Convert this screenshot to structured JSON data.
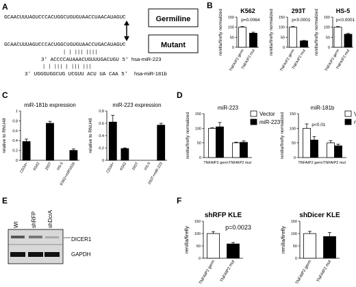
{
  "panels": {
    "A": {
      "label": "A",
      "germline_seq": "GCAACUUUAGUCCCACUGGCUGUGUAACCUAACAUAGUC",
      "mutant_seq": "GCAACUUUAGUCCCACUGGCUGUGUAACCUGACAUAGUC",
      "germline_box": "Germiline",
      "mutant_box": "Mutant",
      "mir223_seq": "3' ACCCCAUAAACUGUUUGACUGU 5'",
      "mir223_name": "hsa-miR-223",
      "mir181b_seq": "3' UGGGUGGCUG UCGUU     ACU   UA  CAA 5'",
      "mir181b_name": "hsa-miR-181b",
      "pairing_223": "|   |  |||  ||||",
      "pairing_181b": "|  |    |||  |  |||    |||"
    },
    "B": {
      "label": "B"
    },
    "C": {
      "label": "C"
    },
    "D": {
      "label": "D"
    },
    "E": {
      "label": "E",
      "lanes": [
        "Wt",
        "shRFP",
        "shDcrA"
      ],
      "bands": [
        "DICER1",
        "GAPDH"
      ]
    },
    "F": {
      "label": "F"
    }
  },
  "chart_data": [
    {
      "id": "B1",
      "type": "bar",
      "title": "K562",
      "ylabel": "renilla/firefly normalized",
      "categories": [
        "TNFAIP2 germ",
        "TNFAIP2 mut"
      ],
      "values": [
        100,
        70
      ],
      "errors": [
        3,
        5
      ],
      "fills": [
        "white",
        "black"
      ],
      "ylim": [
        0,
        150
      ],
      "yticks": [
        0,
        50,
        100,
        150
      ],
      "annotation": "p=0.0064"
    },
    {
      "id": "B2",
      "type": "bar",
      "title": "293T",
      "ylabel": "renilla/firefly normalized",
      "categories": [
        "TNFAIP2 germ",
        "TNFAIP2 mut"
      ],
      "values": [
        100,
        32
      ],
      "errors": [
        3,
        2
      ],
      "fills": [
        "white",
        "black"
      ],
      "ylim": [
        0,
        150
      ],
      "yticks": [
        0,
        50,
        100,
        150
      ],
      "annotation": "p<0.0001"
    },
    {
      "id": "B3",
      "type": "bar",
      "title": "HS-5",
      "ylabel": "renilla/firefly normalized",
      "categories": [
        "TNFAIP2 germ",
        "TNFAIP2 mut"
      ],
      "values": [
        100,
        65
      ],
      "errors": [
        3,
        4
      ],
      "fills": [
        "white",
        "black"
      ],
      "ylim": [
        0,
        150
      ],
      "yticks": [
        0,
        50,
        100,
        150
      ],
      "annotation": "p<0.0001"
    },
    {
      "id": "C1",
      "type": "bar",
      "title": "miR-181b expression",
      "ylabel": "relative to RNU48",
      "categories": [
        "CD34+",
        "K562",
        "293T",
        "HS-5",
        "K562+miR181b"
      ],
      "values": [
        0.38,
        0.0,
        0.75,
        0.0,
        0.2
      ],
      "errors": [
        0.05,
        0,
        0.04,
        0,
        0.03
      ],
      "fills": [
        "black",
        "black",
        "black",
        "black",
        "black"
      ],
      "ylim": [
        0,
        1.0
      ],
      "yticks": [
        0.0,
        0.2,
        0.4,
        0.6,
        0.8,
        1.0
      ]
    },
    {
      "id": "C2",
      "type": "bar",
      "title": "miR-223 expression",
      "ylabel": "relative to RNU48",
      "categories": [
        "CD34+",
        "K562",
        "293T",
        "HS-5",
        "293T+miR-223"
      ],
      "values": [
        0.62,
        0.19,
        0.0,
        0.0,
        0.57
      ],
      "errors": [
        0.11,
        0.01,
        0,
        0,
        0.03
      ],
      "fills": [
        "black",
        "black",
        "black",
        "black",
        "black"
      ],
      "ylim": [
        0,
        0.8
      ],
      "yticks": [
        0.0,
        0.2,
        0.4,
        0.6,
        0.8
      ]
    },
    {
      "id": "D1",
      "type": "bar",
      "title": "miR-223",
      "ylabel": "renilla/firefly normalized",
      "categories": [
        "TNFAIP2 germ",
        "TNFAIP2 mut"
      ],
      "series": [
        {
          "name": "Vector",
          "values": [
            100,
            50
          ],
          "errors": [
            2,
            3
          ],
          "fill": "white"
        },
        {
          "name": "miR-223",
          "values": [
            105,
            52
          ],
          "errors": [
            15,
            5
          ],
          "fill": "black"
        }
      ],
      "ylim": [
        0,
        150
      ],
      "yticks": [
        0,
        50,
        100,
        150
      ],
      "legend": "top-right"
    },
    {
      "id": "D2",
      "type": "bar",
      "title": "miR-181b",
      "ylabel": "renilla/firefly normalized",
      "categories": [
        "TNFAIP2 germ",
        "TNFAIP2 mut"
      ],
      "series": [
        {
          "name": "Vector",
          "values": [
            100,
            50
          ],
          "errors": [
            15,
            8
          ],
          "fill": "white"
        },
        {
          "name": "miR-181b",
          "values": [
            60,
            40
          ],
          "errors": [
            12,
            6
          ],
          "fill": "black"
        }
      ],
      "ylim": [
        0,
        150
      ],
      "yticks": [
        0,
        50,
        100,
        150
      ],
      "legend": "top-right",
      "annotation": "p<0.01"
    },
    {
      "id": "F1",
      "type": "bar",
      "title": "shRFP KLE",
      "ylabel": "renilla/firefly",
      "categories": [
        "TNFAIP2 germ",
        "TNFAIP2 mut"
      ],
      "values": [
        100,
        58
      ],
      "errors": [
        8,
        6
      ],
      "fills": [
        "white",
        "black"
      ],
      "ylim": [
        0,
        150
      ],
      "yticks": [
        0,
        50,
        100,
        150
      ],
      "annotation": "p=0.0023"
    },
    {
      "id": "F2",
      "type": "bar",
      "title": "shDicer KLE",
      "ylabel": "renilla/firefly",
      "categories": [
        "TNFAIP2 germ",
        "TNFAIP2 mut"
      ],
      "values": [
        100,
        88
      ],
      "errors": [
        9,
        16
      ],
      "fills": [
        "white",
        "black"
      ],
      "ylim": [
        0,
        150
      ],
      "yticks": [
        0,
        50,
        100,
        150
      ]
    }
  ]
}
